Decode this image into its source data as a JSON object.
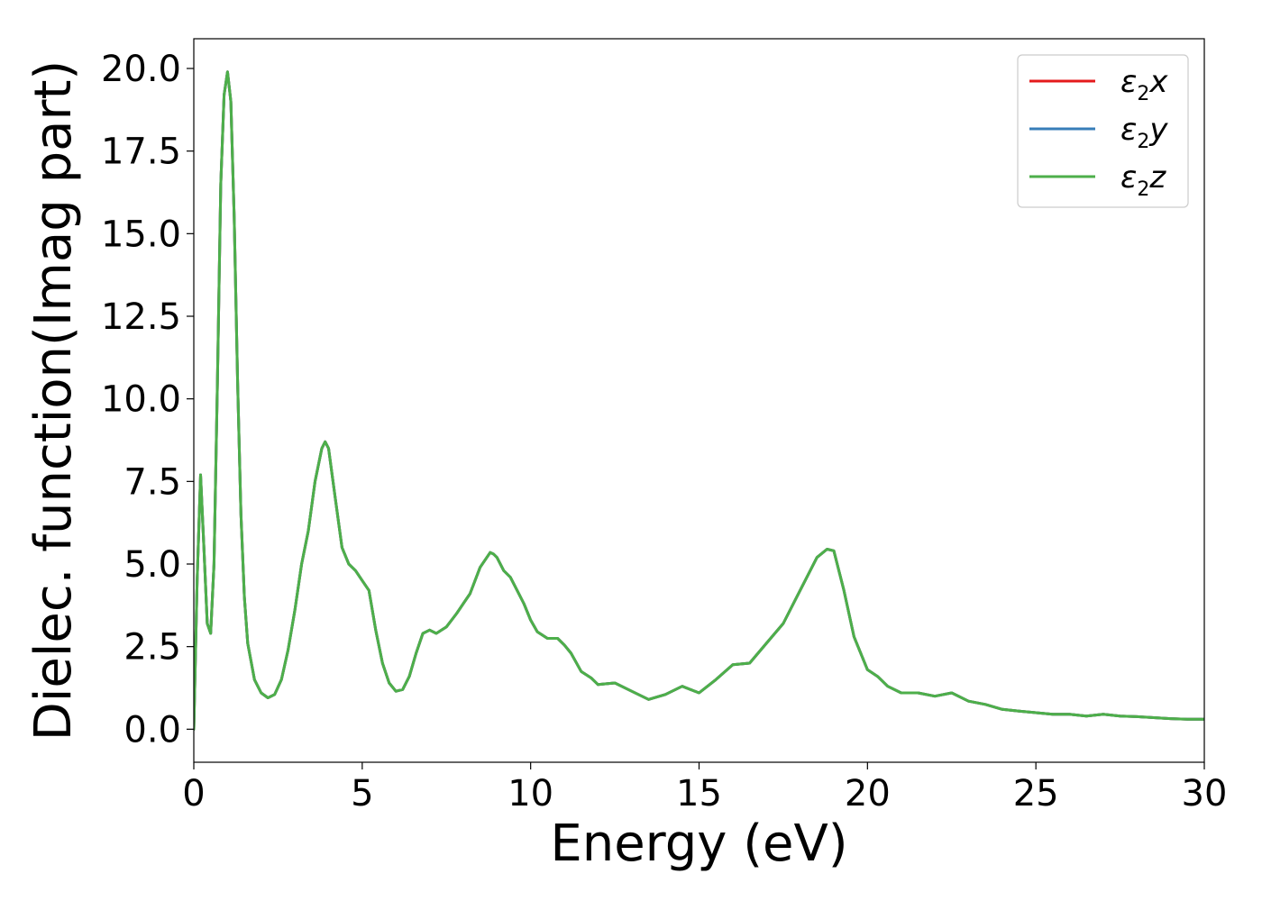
{
  "chart_data": {
    "type": "line",
    "title": "",
    "xlabel": "Energy (eV)",
    "ylabel": "Dielec. function(Imag part)",
    "xlim": [
      0,
      30
    ],
    "ylim": [
      -1.0,
      20.9
    ],
    "x_ticks": [
      0,
      5,
      10,
      15,
      20,
      25,
      30
    ],
    "x_tick_labels": [
      "0",
      "5",
      "10",
      "15",
      "20",
      "25",
      "30"
    ],
    "y_ticks": [
      0.0,
      2.5,
      5.0,
      7.5,
      10.0,
      12.5,
      15.0,
      17.5,
      20.0
    ],
    "y_tick_labels": [
      "0.0",
      "2.5",
      "5.0",
      "7.5",
      "10.0",
      "12.5",
      "15.0",
      "17.5",
      "20.0"
    ],
    "grid": false,
    "legend_position": "top-right",
    "x": [
      0,
      0.1,
      0.2,
      0.3,
      0.4,
      0.5,
      0.6,
      0.7,
      0.8,
      0.9,
      1.0,
      1.1,
      1.2,
      1.3,
      1.4,
      1.5,
      1.6,
      1.8,
      2.0,
      2.2,
      2.4,
      2.6,
      2.8,
      3.0,
      3.2,
      3.4,
      3.6,
      3.8,
      3.9,
      4.0,
      4.2,
      4.4,
      4.6,
      4.8,
      5.0,
      5.2,
      5.4,
      5.6,
      5.8,
      6.0,
      6.2,
      6.4,
      6.6,
      6.8,
      7.0,
      7.2,
      7.5,
      7.8,
      8.0,
      8.2,
      8.5,
      8.8,
      8.9,
      9.0,
      9.2,
      9.4,
      9.6,
      9.8,
      10.0,
      10.2,
      10.5,
      10.8,
      11.0,
      11.2,
      11.5,
      11.8,
      12.0,
      12.5,
      13.0,
      13.5,
      14.0,
      14.5,
      15.0,
      15.5,
      16.0,
      16.5,
      17.0,
      17.5,
      18.0,
      18.5,
      18.8,
      19.0,
      19.3,
      19.6,
      20.0,
      20.3,
      20.6,
      21.0,
      21.5,
      22.0,
      22.5,
      23.0,
      23.5,
      24.0,
      24.5,
      25.0,
      25.5,
      26.0,
      26.5,
      27.0,
      27.5,
      28.0,
      28.5,
      29.0,
      29.5,
      30.0
    ],
    "series": [
      {
        "name": "ε2x",
        "color": "#e41a1c",
        "values": [
          0.0,
          4.5,
          7.7,
          5.5,
          3.2,
          2.9,
          5.0,
          10.5,
          16.5,
          19.2,
          19.9,
          19.0,
          15.5,
          10.5,
          6.5,
          4.0,
          2.6,
          1.5,
          1.1,
          0.95,
          1.05,
          1.5,
          2.4,
          3.6,
          5.0,
          6.0,
          7.5,
          8.5,
          8.7,
          8.5,
          7.0,
          5.5,
          5.0,
          4.8,
          4.5,
          4.2,
          3.0,
          2.0,
          1.4,
          1.15,
          1.2,
          1.6,
          2.3,
          2.9,
          3.0,
          2.9,
          3.1,
          3.5,
          3.8,
          4.1,
          4.9,
          5.35,
          5.3,
          5.2,
          4.8,
          4.6,
          4.2,
          3.8,
          3.3,
          2.95,
          2.75,
          2.75,
          2.55,
          2.3,
          1.75,
          1.55,
          1.35,
          1.4,
          1.15,
          0.9,
          1.05,
          1.3,
          1.1,
          1.5,
          1.95,
          2.0,
          2.6,
          3.2,
          4.2,
          5.2,
          5.45,
          5.4,
          4.2,
          2.8,
          1.8,
          1.6,
          1.3,
          1.1,
          1.1,
          1.0,
          1.1,
          0.85,
          0.75,
          0.6,
          0.55,
          0.5,
          0.45,
          0.45,
          0.4,
          0.45,
          0.4,
          0.38,
          0.35,
          0.32,
          0.3,
          0.3
        ]
      },
      {
        "name": "ε2y",
        "color": "#377eb8",
        "values": [
          0.0,
          4.5,
          7.7,
          5.5,
          3.2,
          2.9,
          5.0,
          10.5,
          16.5,
          19.2,
          19.9,
          19.0,
          15.5,
          10.5,
          6.5,
          4.0,
          2.6,
          1.5,
          1.1,
          0.95,
          1.05,
          1.5,
          2.4,
          3.6,
          5.0,
          6.0,
          7.5,
          8.5,
          8.7,
          8.5,
          7.0,
          5.5,
          5.0,
          4.8,
          4.5,
          4.2,
          3.0,
          2.0,
          1.4,
          1.15,
          1.2,
          1.6,
          2.3,
          2.9,
          3.0,
          2.9,
          3.1,
          3.5,
          3.8,
          4.1,
          4.9,
          5.35,
          5.3,
          5.2,
          4.8,
          4.6,
          4.2,
          3.8,
          3.3,
          2.95,
          2.75,
          2.75,
          2.55,
          2.3,
          1.75,
          1.55,
          1.35,
          1.4,
          1.15,
          0.9,
          1.05,
          1.3,
          1.1,
          1.5,
          1.95,
          2.0,
          2.6,
          3.2,
          4.2,
          5.2,
          5.45,
          5.4,
          4.2,
          2.8,
          1.8,
          1.6,
          1.3,
          1.1,
          1.1,
          1.0,
          1.1,
          0.85,
          0.75,
          0.6,
          0.55,
          0.5,
          0.45,
          0.45,
          0.4,
          0.45,
          0.4,
          0.38,
          0.35,
          0.32,
          0.3,
          0.3
        ]
      },
      {
        "name": "ε2z",
        "color": "#4daf4a",
        "values": [
          0.0,
          4.5,
          7.7,
          5.5,
          3.2,
          2.9,
          5.0,
          10.5,
          16.5,
          19.2,
          19.9,
          19.0,
          15.5,
          10.5,
          6.5,
          4.0,
          2.6,
          1.5,
          1.1,
          0.95,
          1.05,
          1.5,
          2.4,
          3.6,
          5.0,
          6.0,
          7.5,
          8.5,
          8.7,
          8.5,
          7.0,
          5.5,
          5.0,
          4.8,
          4.5,
          4.2,
          3.0,
          2.0,
          1.4,
          1.15,
          1.2,
          1.6,
          2.3,
          2.9,
          3.0,
          2.9,
          3.1,
          3.5,
          3.8,
          4.1,
          4.9,
          5.35,
          5.3,
          5.2,
          4.8,
          4.6,
          4.2,
          3.8,
          3.3,
          2.95,
          2.75,
          2.75,
          2.55,
          2.3,
          1.75,
          1.55,
          1.35,
          1.4,
          1.15,
          0.9,
          1.05,
          1.3,
          1.1,
          1.5,
          1.95,
          2.0,
          2.6,
          3.2,
          4.2,
          5.2,
          5.45,
          5.4,
          4.2,
          2.8,
          1.8,
          1.6,
          1.3,
          1.1,
          1.1,
          1.0,
          1.1,
          0.85,
          0.75,
          0.6,
          0.55,
          0.5,
          0.45,
          0.45,
          0.4,
          0.45,
          0.4,
          0.38,
          0.35,
          0.32,
          0.3,
          0.3
        ]
      }
    ]
  }
}
